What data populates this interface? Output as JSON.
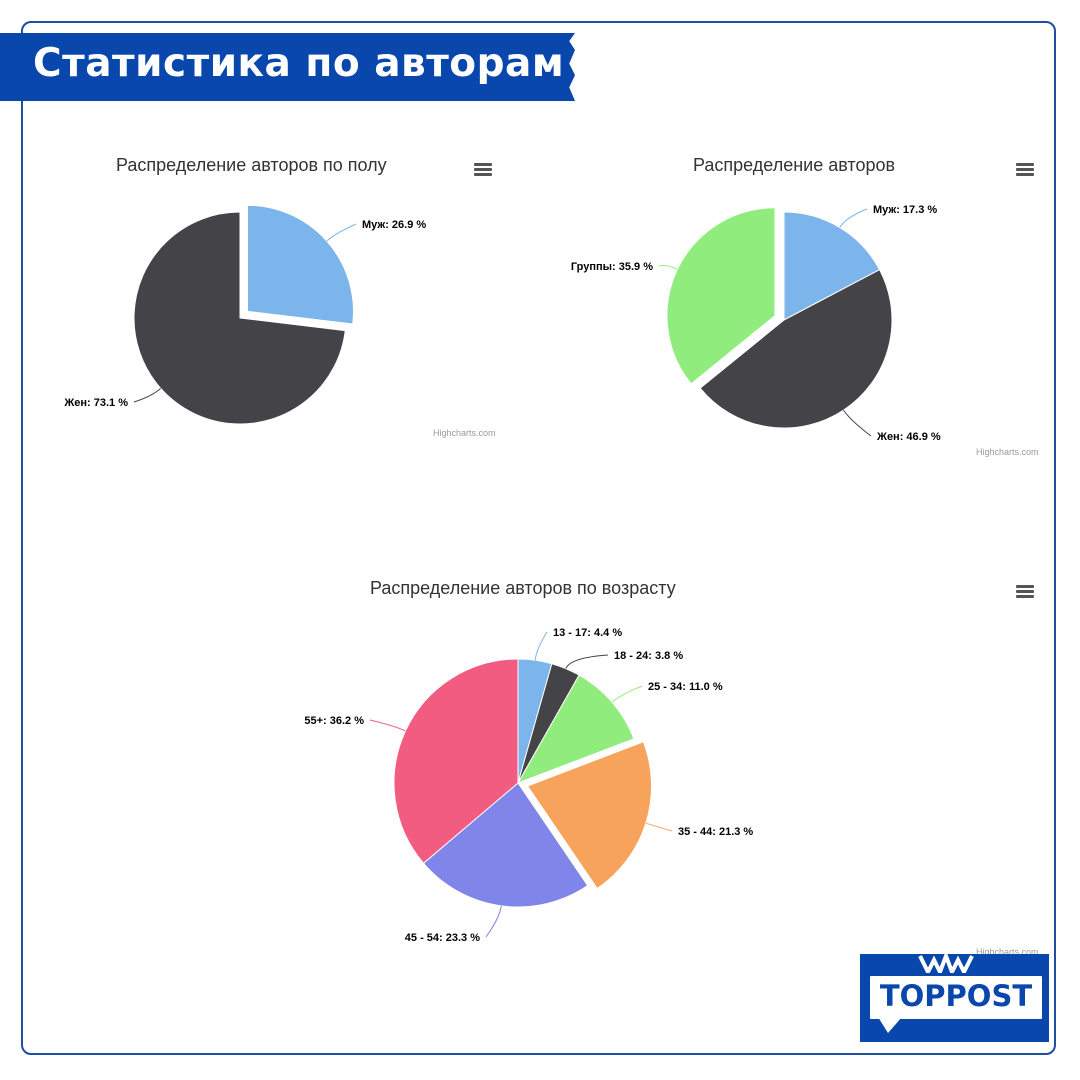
{
  "banner": {
    "title": "Статистика по авторам"
  },
  "logo": {
    "text": "TOPPOST"
  },
  "chart_data": [
    {
      "type": "pie",
      "title": "Распределение авторов по полу",
      "credit": "Highcharts.com",
      "slices": [
        {
          "label": "Муж",
          "value": 26.9,
          "color": "#7cb5ec",
          "sliced": true
        },
        {
          "label": "Жен",
          "value": 73.1,
          "color": "#434348",
          "sliced": false
        }
      ]
    },
    {
      "type": "pie",
      "title": "Распределение авторов",
      "credit": "Highcharts.com",
      "slices": [
        {
          "label": "Муж",
          "value": 17.3,
          "color": "#7cb5ec",
          "sliced": false
        },
        {
          "label": "Жен",
          "value": 46.9,
          "color": "#434348",
          "sliced": false
        },
        {
          "label": "Группы",
          "value": 35.9,
          "color": "#90ed7d",
          "sliced": true
        }
      ]
    },
    {
      "type": "pie",
      "title": "Распределение авторов по возрасту",
      "credit": "Highcharts.com",
      "slices": [
        {
          "label": "13 - 17",
          "value": 4.4,
          "color": "#7cb5ec",
          "sliced": false
        },
        {
          "label": "18 - 24",
          "value": 3.8,
          "color": "#434348",
          "sliced": false
        },
        {
          "label": "25 - 34",
          "value": 11.0,
          "color": "#90ed7d",
          "sliced": false
        },
        {
          "label": "35 - 44",
          "value": 21.3,
          "color": "#f7a35c",
          "sliced": true
        },
        {
          "label": "45 - 54",
          "value": 23.3,
          "color": "#8085e9",
          "sliced": false
        },
        {
          "label": "55+",
          "value": 36.2,
          "color": "#f15c80",
          "sliced": false
        }
      ]
    }
  ]
}
